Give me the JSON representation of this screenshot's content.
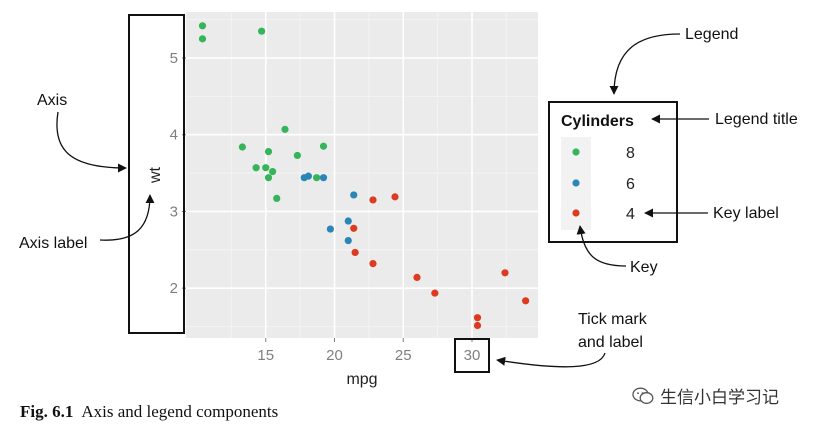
{
  "chart_data": {
    "type": "scatter",
    "title": "",
    "xlabel": "mpg",
    "ylabel": "wt",
    "xlim": [
      9.2,
      34.8
    ],
    "ylim": [
      1.35,
      5.6
    ],
    "x_ticks": [
      15,
      20,
      25,
      30
    ],
    "y_ticks": [
      2,
      3,
      4,
      5
    ],
    "grid": true,
    "legend": {
      "title": "Cylinders",
      "position": "right",
      "entries": [
        {
          "label": "8",
          "color": "#35b45a"
        },
        {
          "label": "6",
          "color": "#2b86b8"
        },
        {
          "label": "4",
          "color": "#de3a1f"
        }
      ]
    },
    "series": [
      {
        "name": "8",
        "color": "#35b45a",
        "points": [
          {
            "x": 10.4,
            "y": 5.42
          },
          {
            "x": 10.4,
            "y": 5.25
          },
          {
            "x": 14.7,
            "y": 5.35
          },
          {
            "x": 13.3,
            "y": 3.84
          },
          {
            "x": 14.3,
            "y": 3.57
          },
          {
            "x": 15.0,
            "y": 3.57
          },
          {
            "x": 15.2,
            "y": 3.78
          },
          {
            "x": 15.2,
            "y": 3.44
          },
          {
            "x": 15.5,
            "y": 3.52
          },
          {
            "x": 15.8,
            "y": 3.17
          },
          {
            "x": 16.4,
            "y": 4.07
          },
          {
            "x": 17.3,
            "y": 3.73
          },
          {
            "x": 18.7,
            "y": 3.44
          },
          {
            "x": 19.2,
            "y": 3.85
          }
        ]
      },
      {
        "name": "6",
        "color": "#2b86b8",
        "points": [
          {
            "x": 17.8,
            "y": 3.44
          },
          {
            "x": 18.1,
            "y": 3.46
          },
          {
            "x": 19.2,
            "y": 3.44
          },
          {
            "x": 19.7,
            "y": 2.77
          },
          {
            "x": 21.0,
            "y": 2.62
          },
          {
            "x": 21.0,
            "y": 2.875
          },
          {
            "x": 21.4,
            "y": 3.215
          }
        ]
      },
      {
        "name": "4",
        "color": "#de3a1f",
        "points": [
          {
            "x": 21.4,
            "y": 2.78
          },
          {
            "x": 21.5,
            "y": 2.465
          },
          {
            "x": 22.8,
            "y": 3.15
          },
          {
            "x": 22.8,
            "y": 2.32
          },
          {
            "x": 24.4,
            "y": 3.19
          },
          {
            "x": 26.0,
            "y": 2.14
          },
          {
            "x": 27.3,
            "y": 1.935
          },
          {
            "x": 30.4,
            "y": 1.615
          },
          {
            "x": 30.4,
            "y": 1.513
          },
          {
            "x": 32.4,
            "y": 2.2
          },
          {
            "x": 33.9,
            "y": 1.835
          }
        ]
      }
    ],
    "annotations": [
      {
        "id": "axis",
        "text": "Axis"
      },
      {
        "id": "axis-label",
        "text": "Axis label"
      },
      {
        "id": "legend",
        "text": "Legend"
      },
      {
        "id": "legend-title",
        "text": "Legend title"
      },
      {
        "id": "key-label",
        "text": "Key label"
      },
      {
        "id": "key",
        "text": "Key"
      },
      {
        "id": "tick-mark",
        "lines": [
          "Tick mark",
          "and label"
        ]
      }
    ]
  },
  "caption": {
    "number": "Fig. 6.1",
    "text": "Axis and legend components"
  },
  "watermark": {
    "text": "生信小白学习记",
    "icon": "wechat-icon"
  }
}
